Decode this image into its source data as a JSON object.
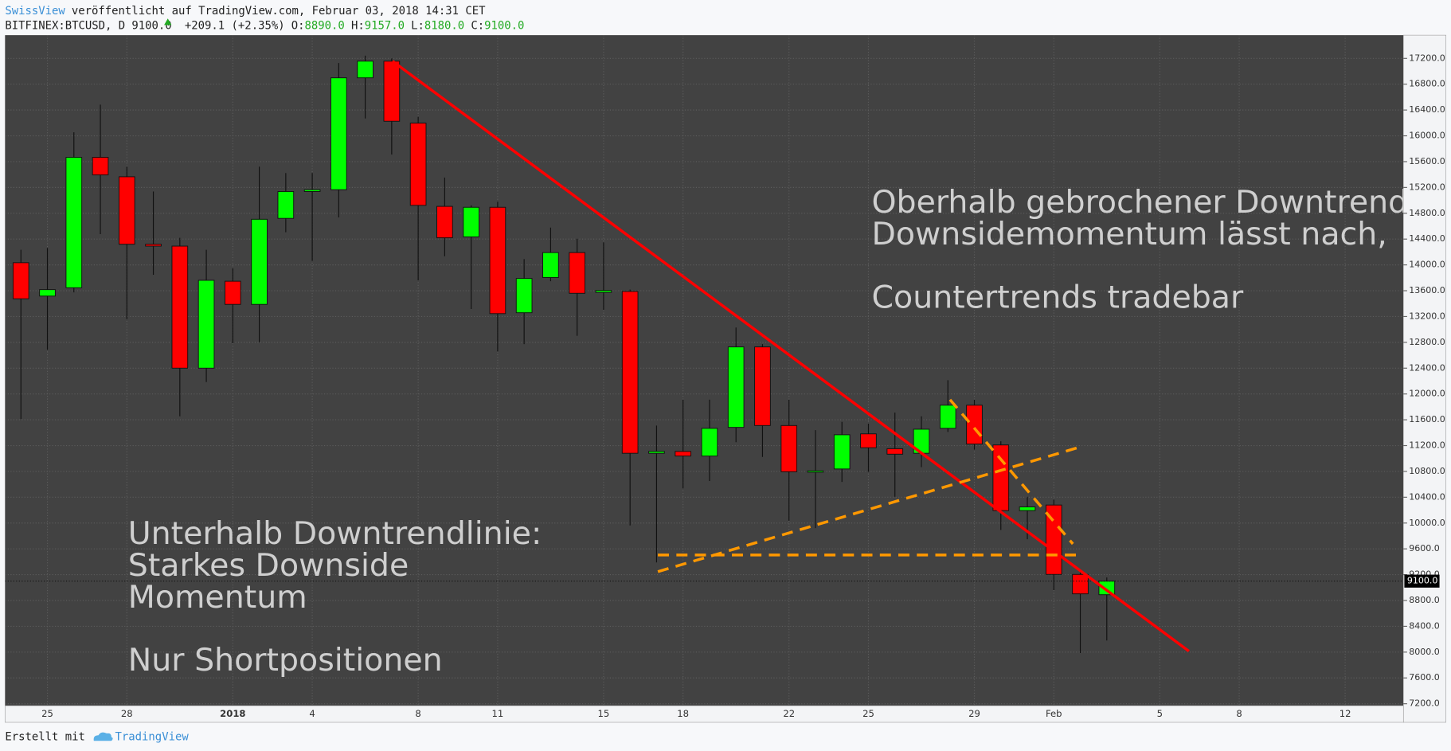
{
  "header": {
    "author": "SwissView",
    "published": "veröffentlicht auf TradingView.com, Februar 03, 2018 14:31 CET",
    "symbol": "BITFINEX:BTCUSD, D",
    "last": "9100.0",
    "change": "+209.1 (+2.35%)",
    "ohlc": [
      {
        "label": "O:",
        "value": "8890.0"
      },
      {
        "label": "H:",
        "value": "9157.0"
      },
      {
        "label": "L:",
        "value": "8180.0"
      },
      {
        "label": "C:",
        "value": "9100.0"
      }
    ]
  },
  "chart_data": {
    "type": "candlestick",
    "open": [
      14034,
      13517,
      13646,
      15667,
      15366,
      14320,
      14291,
      12400,
      13747,
      13388,
      14721,
      15137,
      15165,
      16899,
      17157,
      16197,
      14907,
      14434,
      14893,
      13259,
      13804,
      14191,
      13574,
      13589,
      11081,
      11110,
      11038,
      11482,
      12729,
      11511,
      10795,
      10838,
      11382,
      11152,
      11081,
      11468,
      11826,
      11210,
      10193,
      10279,
      9204,
      8890
    ],
    "high": [
      14234,
      14262,
      16054,
      16484,
      15523,
      15137,
      14420,
      14234,
      13947,
      15523,
      15423,
      15423,
      17128,
      17243,
      17200,
      16297,
      15352,
      14922,
      14979,
      14090,
      14578,
      14406,
      14349,
      13617,
      11511,
      11912,
      11912,
      13030,
      12772,
      11912,
      11439,
      11568,
      11540,
      11712,
      11654,
      12213,
      11912,
      11267,
      10407,
      10365,
      9233,
      9157
    ],
    "low": [
      11612,
      12686,
      13574,
      14477,
      13159,
      13847,
      11654,
      12185,
      12786,
      12801,
      14506,
      14062,
      14735,
      16269,
      15710,
      13761,
      14134,
      13317,
      12657,
      12772,
      13747,
      12901,
      13302,
      9963,
      9390,
      10537,
      10651,
      11253,
      11024,
      10035,
      9921,
      10637,
      10795,
      10407,
      10866,
      11411,
      11138,
      9892,
      9749,
      8960,
      7986,
      8180
    ],
    "close": [
      13475,
      13617,
      15667,
      15394,
      14320,
      14291,
      12400,
      13761,
      13388,
      14707,
      15137,
      15165,
      16899,
      17157,
      16226,
      14922,
      14420,
      14893,
      13245,
      13790,
      14191,
      13560,
      13603,
      11081,
      11110,
      11038,
      11468,
      12729,
      11511,
      10795,
      10809,
      11368,
      11167,
      11067,
      11454,
      11826,
      11224,
      10193,
      10250,
      9204,
      8903,
      9100
    ],
    "up_color": "#00ff00",
    "down_color": "#ff0000",
    "xlim": [
      -0.6,
      52.2
    ],
    "xticks": [
      {
        "value": 1,
        "label": "25"
      },
      {
        "value": 4,
        "label": "28"
      },
      {
        "value": 8,
        "label": "2018"
      },
      {
        "value": 11,
        "label": "4"
      },
      {
        "value": 15,
        "label": "8"
      },
      {
        "value": 18,
        "label": "11"
      },
      {
        "value": 22,
        "label": "15"
      },
      {
        "value": 25,
        "label": "18"
      },
      {
        "value": 29,
        "label": "22"
      },
      {
        "value": 32,
        "label": "25"
      },
      {
        "value": 36,
        "label": "29"
      },
      {
        "value": 39,
        "label": "Feb"
      },
      {
        "value": 43,
        "label": "5"
      },
      {
        "value": 46,
        "label": "8"
      },
      {
        "value": 50,
        "label": "12"
      }
    ],
    "ylim": [
      7170,
      17560
    ],
    "yticks": [
      {
        "value": 7200,
        "label": "7200.0"
      },
      {
        "value": 7600,
        "label": "7600.0"
      },
      {
        "value": 8000,
        "label": "8000.0"
      },
      {
        "value": 8400,
        "label": "8400.0"
      },
      {
        "value": 8800,
        "label": "8800.0"
      },
      {
        "value": 9200,
        "label": "9200.0"
      },
      {
        "value": 9600,
        "label": "9600.0"
      },
      {
        "value": 10000,
        "label": "10000.0"
      },
      {
        "value": 10400,
        "label": "10400.0"
      },
      {
        "value": 10800,
        "label": "10800.0"
      },
      {
        "value": 11200,
        "label": "11200.0"
      },
      {
        "value": 11600,
        "label": "11600.0"
      },
      {
        "value": 12000,
        "label": "12000.0"
      },
      {
        "value": 12400,
        "label": "12400.0"
      },
      {
        "value": 12800,
        "label": "12800.0"
      },
      {
        "value": 13200,
        "label": "13200.0"
      },
      {
        "value": 13600,
        "label": "13600.0"
      },
      {
        "value": 14000,
        "label": "14000.0"
      },
      {
        "value": 14400,
        "label": "14400.0"
      },
      {
        "value": 14800,
        "label": "14800.0"
      },
      {
        "value": 15200,
        "label": "15200.0"
      },
      {
        "value": 15600,
        "label": "15600.0"
      },
      {
        "value": 16000,
        "label": "16000.0"
      },
      {
        "value": 16400,
        "label": "16400.0"
      },
      {
        "value": 16800,
        "label": "16800.0"
      },
      {
        "value": 17200,
        "label": "17200.0"
      }
    ],
    "grid": true,
    "last_label": "9100.0",
    "drawings": [
      {
        "color": "#ff0000",
        "dashed": false,
        "x": [
          14.03,
          44.1
        ],
        "y": [
          17157,
          8015
        ]
      },
      {
        "color": "#ff9800",
        "dashed": true,
        "x": [
          24.05,
          40.07
        ],
        "y": [
          9505,
          9505
        ]
      },
      {
        "color": "#ff9800",
        "dashed": true,
        "x": [
          24.05,
          39.9
        ],
        "y": [
          9247,
          11167
        ]
      },
      {
        "color": "#ff9800",
        "dashed": true,
        "x": [
          35.08,
          39.72
        ],
        "y": [
          11912,
          9677
        ]
      }
    ],
    "annotations": [
      {
        "lines": [
          "Oberhalb gebrochener Downtrend",
          "Downsidemomentum lässt nach,"
        ]
      },
      {
        "lines": [
          "Countertrends tradebar"
        ]
      },
      {
        "lines": [
          "Unterhalb Downtrendlinie:",
          "Starkes Downside",
          "Momentum"
        ]
      },
      {
        "lines": [
          "Nur Shortpositionen"
        ]
      }
    ]
  },
  "footer": {
    "prefix": "Erstellt mit",
    "brand": "TradingView"
  }
}
